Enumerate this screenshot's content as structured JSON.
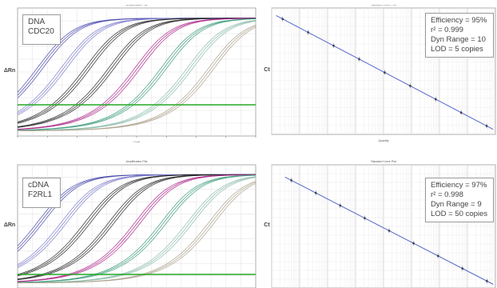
{
  "chart_data": [
    {
      "type": "line",
      "title": "Amplification Plot",
      "xlabel": "Cycle",
      "ylabel": "ΔRn",
      "label_lines": [
        "DNA",
        "CDC20"
      ],
      "threshold_color": "#22aa22",
      "series_colors": [
        "#4444aa",
        "#7a7acc",
        "#222222",
        "#aa2288",
        "#3a9a7a",
        "#88bbaa",
        "#aaa08a"
      ]
    },
    {
      "type": "scatter",
      "title": "Standard Curve Plot",
      "xlabel": "Quantity",
      "ylabel": "Ct",
      "fit_color": "#5566cc",
      "stats": [
        "Efficiency = 95%",
        "r² = 0.999",
        "Dyn Range = 10",
        "LOD = 5 copies"
      ]
    },
    {
      "type": "line",
      "title": "Amplification Plot",
      "xlabel": "",
      "ylabel": "ΔRn",
      "label_lines": [
        "cDNA",
        "F2RL1"
      ],
      "threshold_color": "#22aa22",
      "series_colors": [
        "#4444aa",
        "#7a7acc",
        "#222222",
        "#aa2288",
        "#3a9a7a",
        "#88bbaa",
        "#aaa08a"
      ]
    },
    {
      "type": "scatter",
      "title": "Standard Curve Plot",
      "xlabel": "",
      "ylabel": "Ct",
      "fit_color": "#5566cc",
      "stats": [
        "Efficiency = 97%",
        "r² = 0.998",
        "Dyn Range = 9",
        "LOD = 50 copies"
      ]
    }
  ]
}
